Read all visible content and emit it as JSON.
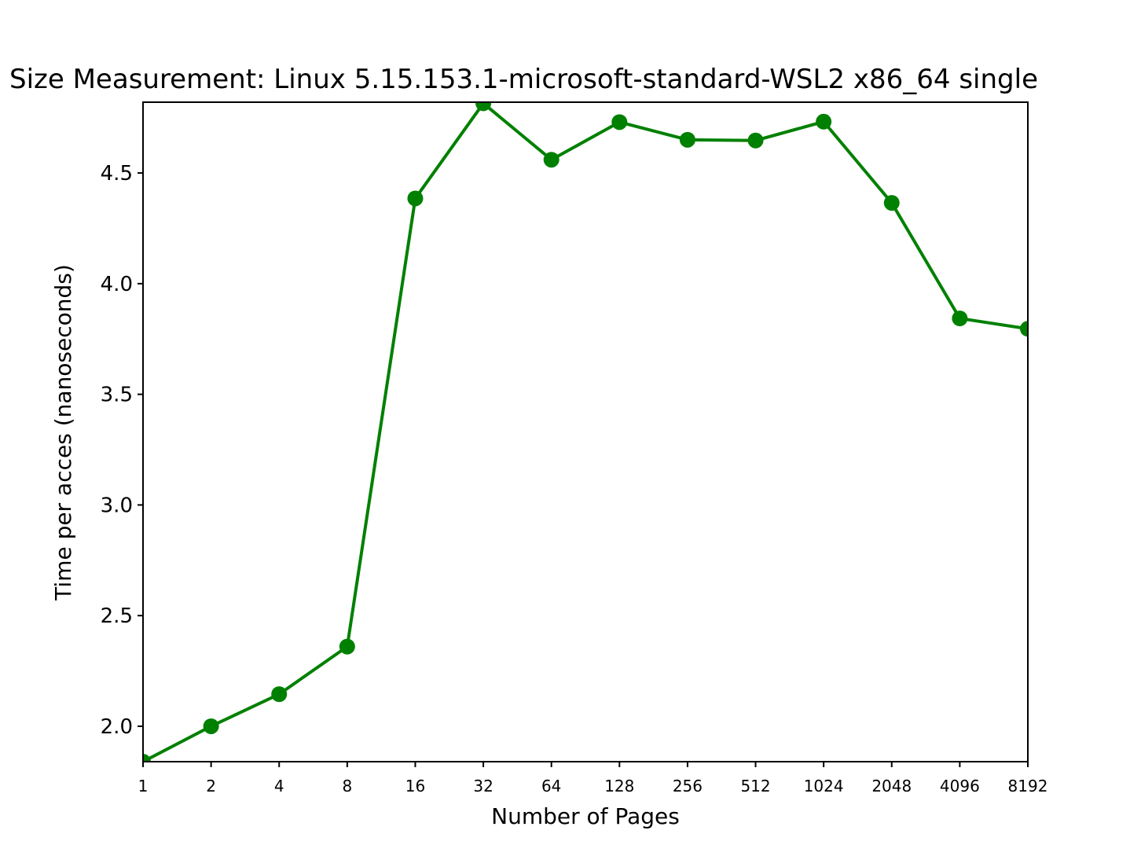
{
  "chart_data": {
    "type": "line",
    "title": "Size Measurement: Linux 5.15.153.1-microsoft-standard-WSL2 x86_64 single",
    "xlabel": "Number of Pages",
    "ylabel": "Time per acces (nanoseconds)",
    "x_scale": "log2",
    "categories": [
      "1",
      "2",
      "4",
      "8",
      "16",
      "32",
      "64",
      "128",
      "256",
      "512",
      "1024",
      "2048",
      "4096",
      "8192"
    ],
    "x": [
      1,
      2,
      4,
      8,
      16,
      32,
      64,
      128,
      256,
      512,
      1024,
      2048,
      4096,
      8192
    ],
    "series": [
      {
        "values": [
          1.84,
          2.0,
          2.145,
          2.36,
          4.385,
          4.815,
          4.56,
          4.73,
          4.65,
          4.647,
          4.732,
          4.365,
          3.843,
          3.796
        ],
        "color": "#008000",
        "marker": "circle"
      }
    ],
    "yticks": [
      "2.0",
      "2.5",
      "3.0",
      "3.5",
      "4.0",
      "4.5"
    ],
    "ytick_values": [
      2.0,
      2.5,
      3.0,
      3.5,
      4.0,
      4.5
    ],
    "ylim": [
      1.84,
      4.82
    ],
    "grid": false,
    "legend": "none"
  }
}
